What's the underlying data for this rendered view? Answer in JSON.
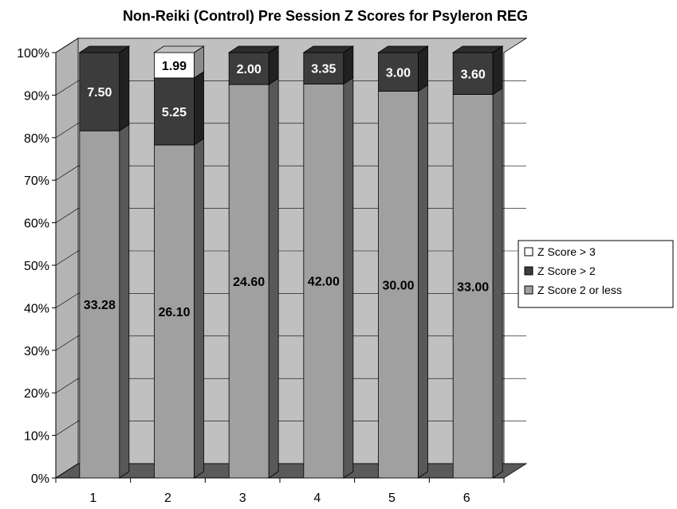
{
  "chart_data": {
    "type": "bar",
    "stacked": true,
    "percent_stacked": true,
    "three_d": true,
    "title": "Non-Reiki (Control) Pre Session Z Scores for Psyleron REG",
    "xlabel": "",
    "ylabel": "",
    "ylim": [
      0,
      100
    ],
    "y_tick_step": 10,
    "y_tick_suffix": "%",
    "grid": true,
    "legend_position": "right",
    "categories": [
      "1",
      "2",
      "3",
      "4",
      "5",
      "6"
    ],
    "series": [
      {
        "name": "Z Score 2 or less",
        "color": "#a0a0a0",
        "values": [
          33.28,
          26.1,
          24.6,
          42.0,
          30.0,
          33.0
        ],
        "labels": [
          "33.28",
          "26.10",
          "24.60",
          "42.00",
          "30.00",
          "33.00"
        ]
      },
      {
        "name": "Z Score > 2",
        "color": "#3c3c3c",
        "values": [
          7.5,
          5.25,
          2.0,
          3.35,
          3.0,
          3.6
        ],
        "labels": [
          "7.50",
          "5.25",
          "2.00",
          "3.35",
          "3.00",
          "3.60"
        ]
      },
      {
        "name": "Z Score > 3",
        "color": "#ffffff",
        "values": [
          0,
          1.99,
          0,
          0,
          0,
          0
        ],
        "labels": [
          "",
          "1.99",
          "",
          "",
          "",
          ""
        ]
      }
    ],
    "legend_order": [
      2,
      1,
      0
    ]
  }
}
